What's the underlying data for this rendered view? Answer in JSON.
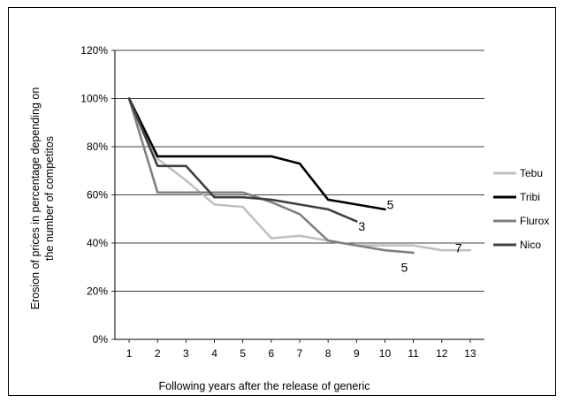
{
  "chart_data": {
    "type": "line",
    "title": "",
    "xlabel": "Following years after the release of generic",
    "ylabel": "Erosion of prices in percentage depending on the number of competitos",
    "x": [
      1,
      2,
      3,
      4,
      5,
      6,
      7,
      8,
      9,
      10,
      11,
      12,
      13
    ],
    "ylim": [
      0,
      120
    ],
    "yticks": [
      0,
      20,
      40,
      60,
      80,
      100,
      120
    ],
    "ytick_labels": [
      "0%",
      "20%",
      "40%",
      "60%",
      "80%",
      "100%",
      "120%"
    ],
    "grid": "horizontal",
    "legend_position": "right",
    "series": [
      {
        "name": "Tebu",
        "color": "#c0c0c0",
        "x": [
          1,
          2,
          3,
          4,
          5,
          6,
          7,
          8,
          9,
          10,
          11,
          12,
          13
        ],
        "values": [
          100,
          75,
          66,
          56,
          55,
          42,
          43,
          41,
          39,
          39,
          39,
          37,
          37
        ]
      },
      {
        "name": "Tribi",
        "color": "#000000",
        "x": [
          1,
          2,
          3,
          4,
          5,
          6,
          7,
          8,
          9,
          10
        ],
        "values": [
          100,
          76,
          76,
          76,
          76,
          76,
          73,
          58,
          56,
          54
        ]
      },
      {
        "name": "Flurox",
        "color": "#808080",
        "x": [
          1,
          2,
          3,
          4,
          5,
          6,
          7,
          8,
          9,
          10,
          11
        ],
        "values": [
          100,
          61,
          61,
          61,
          61,
          57,
          52,
          41,
          39,
          37,
          36
        ]
      },
      {
        "name": "Nico",
        "color": "#404040",
        "x": [
          1,
          2,
          3,
          4,
          5,
          6,
          7,
          8,
          9
        ],
        "values": [
          100,
          72,
          72,
          59,
          59,
          58,
          56,
          54,
          49
        ]
      }
    ],
    "annotations": [
      {
        "text": "5",
        "x": 10,
        "y": 56
      },
      {
        "text": "3",
        "x": 9,
        "y": 47
      },
      {
        "text": "5",
        "x": 10.5,
        "y": 30
      },
      {
        "text": "7",
        "x": 12.4,
        "y": 38
      }
    ]
  }
}
